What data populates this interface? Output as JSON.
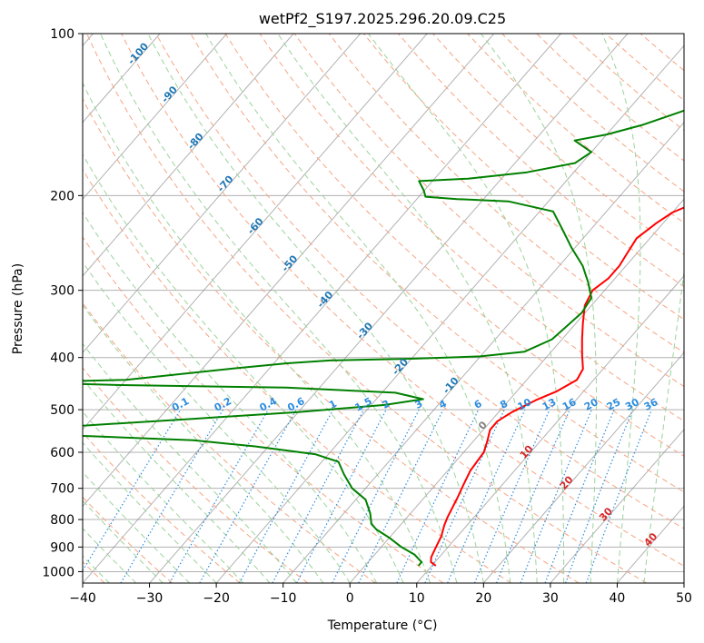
{
  "chart_data": {
    "type": "line",
    "subtype": "skew-T log-P diagram",
    "title": "wetPf2_S197.2025.296.20.09.C25",
    "xlabel": "Temperature (°C)",
    "ylabel": "Pressure (hPa)",
    "xlim": [
      -40,
      50
    ],
    "ylim": [
      1050,
      100
    ],
    "y_scale": "log",
    "x_ticks": [
      -40,
      -30,
      -20,
      -10,
      0,
      10,
      20,
      30,
      40,
      50
    ],
    "y_ticks": [
      100,
      200,
      300,
      400,
      500,
      600,
      700,
      800,
      900,
      1000
    ],
    "grid": true,
    "series": [
      {
        "role": "temperature",
        "color": "#ff0000",
        "points": [
          [
            10.6,
            975
          ],
          [
            9.4,
            960
          ],
          [
            8.8,
            940
          ],
          [
            8.2,
            900
          ],
          [
            7.6,
            860
          ],
          [
            6.6,
            820
          ],
          [
            6.0,
            790
          ],
          [
            5.0,
            730
          ],
          [
            4.2,
            690
          ],
          [
            3.4,
            650
          ],
          [
            3.2,
            625
          ],
          [
            3.0,
            600
          ],
          [
            2.0,
            570
          ],
          [
            1.0,
            545
          ],
          [
            1.0,
            525
          ],
          [
            2.0,
            505
          ],
          [
            4.0,
            480
          ],
          [
            6.0,
            462
          ],
          [
            7.5,
            440
          ],
          [
            7.0,
            420
          ],
          [
            5.0,
            395
          ],
          [
            3.0,
            370
          ],
          [
            1.0,
            345
          ],
          [
            -1.0,
            320
          ],
          [
            -1.8,
            300
          ],
          [
            -1.0,
            285
          ],
          [
            -1.0,
            270
          ],
          [
            -1.5,
            255
          ],
          [
            -2.0,
            240
          ],
          [
            -1.0,
            225
          ],
          [
            0.0,
            215
          ],
          [
            2.0,
            207
          ],
          [
            5.0,
            200
          ],
          [
            8.0,
            190
          ],
          [
            10.0,
            180
          ],
          [
            13.0,
            170
          ],
          [
            17.0,
            160
          ],
          [
            20.5,
            150
          ],
          [
            24.0,
            140
          ],
          [
            29.0,
            130
          ],
          [
            33.0,
            120
          ],
          [
            37.0,
            110
          ],
          [
            40.0,
            100
          ]
        ]
      },
      {
        "role": "dewpoint",
        "color": "#008000",
        "points": [
          [
            8.0,
            975
          ],
          [
            8.0,
            960
          ],
          [
            6.0,
            930
          ],
          [
            3.0,
            900
          ],
          [
            0.0,
            865
          ],
          [
            -3.0,
            835
          ],
          [
            -4.5,
            815
          ],
          [
            -6.0,
            780
          ],
          [
            -8.5,
            735
          ],
          [
            -12.0,
            700
          ],
          [
            -15.0,
            660
          ],
          [
            -17.5,
            625
          ],
          [
            -22.0,
            605
          ],
          [
            -32.0,
            585
          ],
          [
            -42.0,
            570
          ],
          [
            -58.0,
            560
          ],
          [
            -85.0,
            545
          ],
          [
            -60.0,
            535
          ],
          [
            -45.0,
            520
          ],
          [
            -30.0,
            505
          ],
          [
            -18.0,
            490
          ],
          [
            -13.0,
            478
          ],
          [
            -18.0,
            465
          ],
          [
            -35.0,
            455
          ],
          [
            -60.0,
            450
          ],
          [
            -75.0,
            445
          ],
          [
            -60.0,
            440
          ],
          [
            -46.0,
            420
          ],
          [
            -38.0,
            410
          ],
          [
            -32.0,
            405
          ],
          [
            -20.0,
            402
          ],
          [
            -10.0,
            398
          ],
          [
            -4.0,
            390
          ],
          [
            -1.5,
            370
          ],
          [
            -1.0,
            350
          ],
          [
            -0.5,
            330
          ],
          [
            -1.0,
            310
          ],
          [
            -3.5,
            290
          ],
          [
            -6.5,
            270
          ],
          [
            -10.5,
            250
          ],
          [
            -14.5,
            230
          ],
          [
            -18.0,
            214
          ],
          [
            -26.0,
            205
          ],
          [
            -34.0,
            203
          ],
          [
            -39.0,
            201
          ],
          [
            -40.0,
            196
          ],
          [
            -42.0,
            188
          ],
          [
            -35.0,
            186
          ],
          [
            -27.0,
            181
          ],
          [
            -21.0,
            174
          ],
          [
            -20.0,
            166
          ],
          [
            -24.0,
            158
          ],
          [
            -20.0,
            154
          ],
          [
            -16.0,
            148
          ],
          [
            -12.0,
            140
          ],
          [
            -7.0,
            130
          ],
          [
            -5.0,
            122
          ],
          [
            -4.0,
            115
          ],
          [
            -2.0,
            106
          ],
          [
            -0.5,
            100
          ]
        ]
      }
    ],
    "dry_adiabat_labels": [
      "-100",
      "-90",
      "-80",
      "-70",
      "-60",
      "-50",
      "-40",
      "-30",
      "-20",
      "-10",
      "0",
      "10",
      "20",
      "30",
      "40"
    ],
    "mixing_ratio_labels": [
      "0.1",
      "0.2",
      "0.4",
      "0.6",
      "1",
      "1.5",
      "2",
      "3",
      "4",
      "6",
      "8",
      "10",
      "13",
      "16",
      "20",
      "25",
      "30",
      "36"
    ],
    "mixing_ratio_values": [
      0.1,
      0.2,
      0.4,
      0.6,
      1,
      1.5,
      2,
      3,
      4,
      6,
      8,
      10,
      13,
      16,
      20,
      25,
      30,
      36
    ],
    "colors": {
      "dry_adiabats": "#f5a584",
      "moist_adiabats": "#9bd39b",
      "mixing_ratio": "#2b8cde",
      "isotherms": "#7f7f7f",
      "dry_label": "#1f77b4",
      "warm_label": "#d62728",
      "zero_label": "#7f7f7f"
    }
  }
}
